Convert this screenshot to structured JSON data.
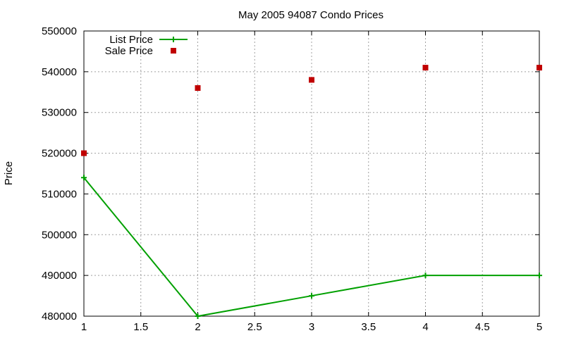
{
  "chart_data": {
    "type": "line",
    "title": "May 2005 94087 Condo Prices",
    "xlabel": "",
    "ylabel": "Price",
    "xlim": [
      1,
      5
    ],
    "ylim": [
      480000,
      550000
    ],
    "xticks": [
      1,
      1.5,
      2,
      2.5,
      3,
      3.5,
      4,
      4.5,
      5
    ],
    "xtick_labels": [
      "1",
      "1.5",
      "2",
      "2.5",
      "3",
      "3.5",
      "4",
      "4.5",
      "5"
    ],
    "yticks": [
      480000,
      490000,
      500000,
      510000,
      520000,
      530000,
      540000,
      550000
    ],
    "ytick_labels": [
      "480000",
      "490000",
      "500000",
      "510000",
      "520000",
      "530000",
      "540000",
      "550000"
    ],
    "grid": true,
    "legend_position": "top-left",
    "series": [
      {
        "name": "List Price",
        "style": "linespoints",
        "marker": "plus",
        "color": "#00a000",
        "x": [
          1,
          2,
          3,
          4,
          5
        ],
        "y": [
          514000,
          480000,
          485000,
          490000,
          490000
        ]
      },
      {
        "name": "Sale Price",
        "style": "points",
        "marker": "square",
        "color": "#c00000",
        "x": [
          1,
          2,
          3,
          4,
          5
        ],
        "y": [
          520000,
          536000,
          538000,
          541000,
          541000
        ]
      }
    ]
  }
}
